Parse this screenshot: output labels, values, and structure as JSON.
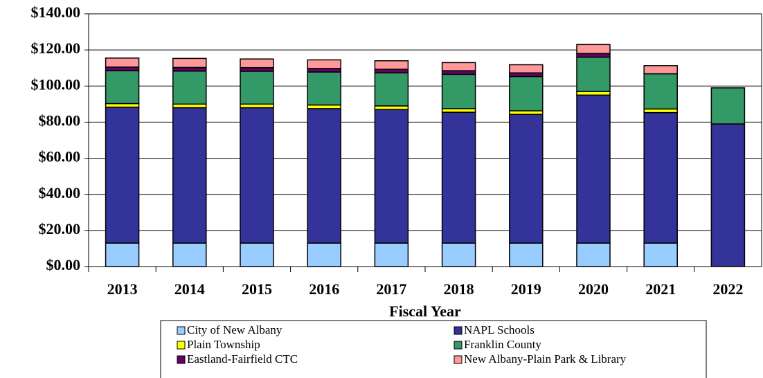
{
  "chart_data": {
    "type": "stacked_bar",
    "x_label": "Fiscal Year",
    "categories": [
      "2013",
      "2014",
      "2015",
      "2016",
      "2017",
      "2018",
      "2019",
      "2020",
      "2021",
      "2022"
    ],
    "series": [
      {
        "name": "City of New Albany",
        "color": "#99ccff",
        "values": [
          13,
          13,
          13,
          13,
          13,
          13,
          13,
          13,
          13,
          0
        ]
      },
      {
        "name": "NAPL Schools",
        "color": "#333399",
        "values": [
          75.3,
          75,
          75,
          74.5,
          74,
          72.5,
          71.3,
          82,
          72.3,
          79
        ]
      },
      {
        "name": "Plain Township",
        "color": "#ffff00",
        "values": [
          2,
          2,
          2,
          2,
          2,
          2,
          2,
          2,
          2,
          0
        ]
      },
      {
        "name": "Franklin County",
        "color": "#339966",
        "values": [
          18.2,
          18.3,
          18.2,
          18.3,
          18.3,
          19,
          19,
          19,
          19.5,
          20
        ]
      },
      {
        "name": "Eastland-Fairfield CTC",
        "color": "#660066",
        "values": [
          2,
          2,
          2,
          2,
          2,
          2,
          2,
          2,
          0,
          0
        ]
      },
      {
        "name": "New Albany-Plain Park & Library",
        "color": "#ff9999",
        "values": [
          5,
          5,
          4.8,
          4.7,
          4.7,
          4.5,
          4.5,
          5,
          4.5,
          0
        ]
      }
    ],
    "ylim": [
      0,
      140
    ],
    "yticks": [
      {
        "value": 0,
        "label": "$0.00"
      },
      {
        "value": 20,
        "label": "$20.00"
      },
      {
        "value": 40,
        "label": "$40.00"
      },
      {
        "value": 60,
        "label": "$60.00"
      },
      {
        "value": 80,
        "label": "$80.00"
      },
      {
        "value": 100,
        "label": "$100.00"
      },
      {
        "value": 120,
        "label": "$120.00"
      },
      {
        "value": 140,
        "label": "$140.00"
      }
    ],
    "grid": true
  }
}
